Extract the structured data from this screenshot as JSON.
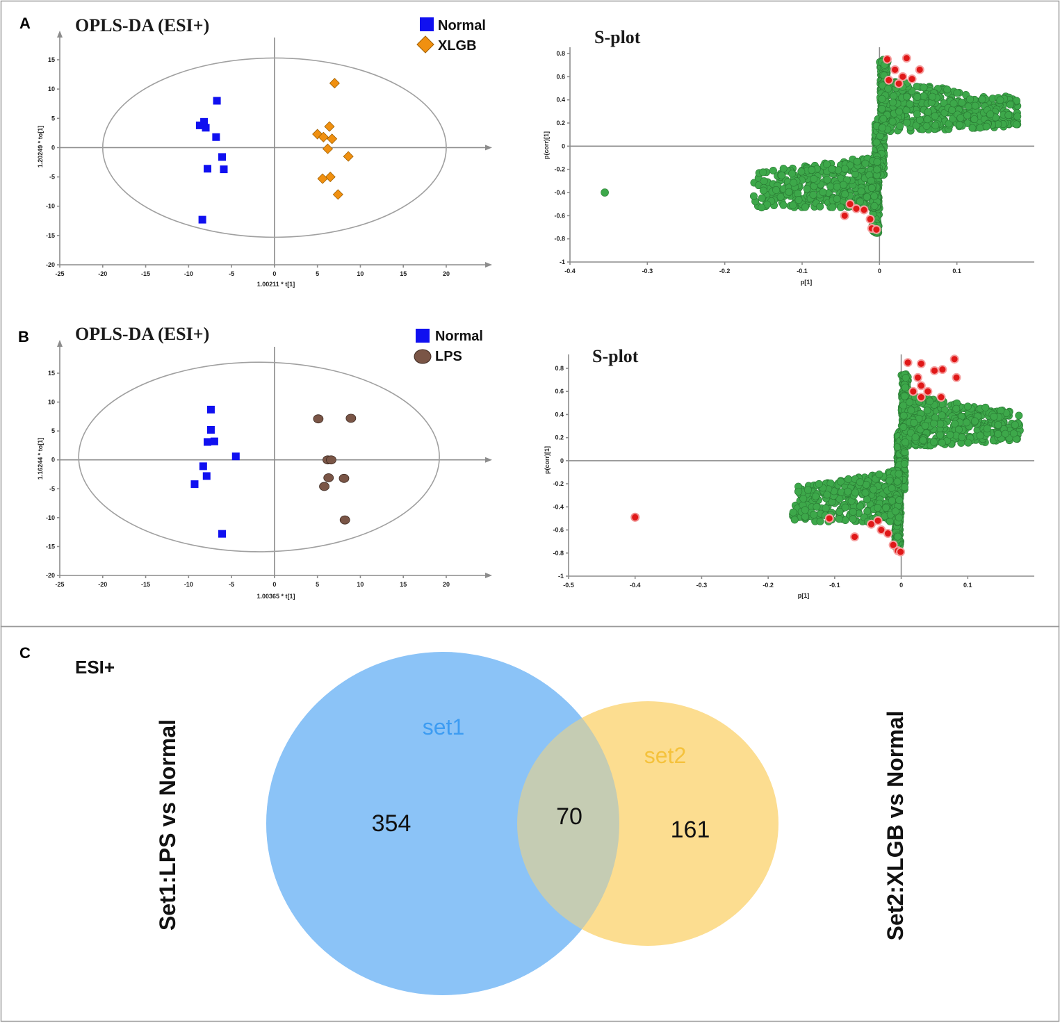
{
  "panel_letters": {
    "a": "A",
    "b": "B",
    "c": "C"
  },
  "colors": {
    "normal": "#1010f0",
    "xlgb": "#f09010",
    "lps": "#7a5546",
    "s_green": "#3da84a",
    "s_red": "#e01818",
    "set1": "#7fbdf7",
    "set2": "#fcd77c",
    "set1_label": "#3d9cf2",
    "set2_label": "#f5c23c"
  },
  "chart_data": [
    {
      "id": "A1",
      "type": "scatter",
      "title": "OPLS-DA (ESI+)",
      "xlabel": "1.00211 * t[1]",
      "ylabel": "1.20249 * to[1]",
      "xlim": [
        -25,
        25
      ],
      "ylim": [
        -20,
        18
      ],
      "xticks": [
        -25,
        -20,
        -15,
        -10,
        -5,
        0,
        5,
        10,
        15,
        20
      ],
      "yticks": [
        -20,
        -15,
        -10,
        -5,
        0,
        5,
        10,
        15
      ],
      "ellipse": {
        "cx": 0,
        "cy": 0,
        "rx": 20,
        "ry": 15.3
      },
      "series": [
        {
          "name": "Normal",
          "marker": "square",
          "color": "#1010f0",
          "points": [
            [
              -6.7,
              8
            ],
            [
              -8.7,
              3.8
            ],
            [
              -8.2,
              4.4
            ],
            [
              -8,
              3.4
            ],
            [
              -6.8,
              1.8
            ],
            [
              -6.1,
              -1.6
            ],
            [
              -5.9,
              -3.7
            ],
            [
              -7.8,
              -3.6
            ],
            [
              -8.4,
              -12.3
            ]
          ]
        },
        {
          "name": "XLGB",
          "marker": "diamond",
          "color": "#f09010",
          "points": [
            [
              7,
              11
            ],
            [
              5,
              2.3
            ],
            [
              5.7,
              1.8
            ],
            [
              6.4,
              3.6
            ],
            [
              6.7,
              1.5
            ],
            [
              6.2,
              -0.2
            ],
            [
              8.6,
              -1.5
            ],
            [
              6.5,
              -5
            ],
            [
              5.6,
              -5.3
            ],
            [
              7.4,
              -8
            ]
          ]
        }
      ]
    },
    {
      "id": "A2",
      "type": "scatter",
      "title": "S-plot",
      "xlabel": "p[1]",
      "ylabel": "p(corr)[1]",
      "xlim": [
        -0.4,
        0.2
      ],
      "ylim": [
        -1,
        0.85
      ],
      "xticks": [
        -0.4,
        -0.3,
        -0.2,
        -0.1,
        0,
        0.1
      ],
      "yticks": [
        -1,
        -0.8,
        -0.6,
        -0.4,
        -0.2,
        0,
        0.2,
        0.4,
        0.6,
        0.8
      ],
      "outlier": [
        -0.355,
        -0.4
      ],
      "red_points": [
        [
          0.01,
          0.75
        ],
        [
          0.035,
          0.76
        ],
        [
          0.052,
          0.66
        ],
        [
          0.02,
          0.66
        ],
        [
          0.03,
          0.6
        ],
        [
          0.012,
          0.57
        ],
        [
          0.025,
          0.54
        ],
        [
          0.042,
          0.58
        ],
        [
          -0.045,
          -0.6
        ],
        [
          -0.038,
          -0.5
        ],
        [
          -0.03,
          -0.54
        ],
        [
          -0.02,
          -0.55
        ],
        [
          -0.012,
          -0.63
        ],
        [
          -0.01,
          -0.71
        ],
        [
          -0.004,
          -0.72
        ]
      ]
    },
    {
      "id": "B1",
      "type": "scatter",
      "title": "OPLS-DA (ESI+)",
      "xlabel": "1.00365 * t[1]",
      "ylabel": "1.16244 * to[1]",
      "xlim": [
        -25,
        25
      ],
      "ylim": [
        -20,
        18
      ],
      "xticks": [
        -25,
        -20,
        -15,
        -10,
        -5,
        0,
        5,
        10,
        15,
        20
      ],
      "yticks": [
        -20,
        -15,
        -10,
        -5,
        0,
        5,
        10,
        15
      ],
      "ellipse": {
        "cx": -1.8,
        "cy": 0.5,
        "rx": 21,
        "ry": 16.4
      },
      "series": [
        {
          "name": "Normal",
          "marker": "square",
          "color": "#1010f0",
          "points": [
            [
              -7.4,
              8.7
            ],
            [
              -7.4,
              5.2
            ],
            [
              -7.8,
              3.1
            ],
            [
              -7,
              3.2
            ],
            [
              -4.5,
              0.6
            ],
            [
              -8.3,
              -1.1
            ],
            [
              -7.9,
              -2.8
            ],
            [
              -9.3,
              -4.2
            ],
            [
              -6.1,
              -12.8
            ]
          ]
        },
        {
          "name": "LPS",
          "marker": "circle",
          "color": "#7a5546",
          "points": [
            [
              5.1,
              7.1
            ],
            [
              8.9,
              7.2
            ],
            [
              6.2,
              0
            ],
            [
              6.6,
              0
            ],
            [
              6.3,
              -3.1
            ],
            [
              8.1,
              -3.2
            ],
            [
              5.8,
              -4.6
            ],
            [
              8.2,
              -10.4
            ]
          ]
        }
      ]
    },
    {
      "id": "B2",
      "type": "scatter",
      "title": "S-plot",
      "xlabel": "p[1]",
      "ylabel": "p(corr)[1]",
      "xlim": [
        -0.5,
        0.2
      ],
      "ylim": [
        -1,
        0.92
      ],
      "xticks": [
        -0.5,
        -0.4,
        -0.3,
        -0.2,
        -0.1,
        0,
        0.1
      ],
      "yticks": [
        -1,
        -0.8,
        -0.6,
        -0.4,
        -0.2,
        0,
        0.2,
        0.4,
        0.6,
        0.8
      ],
      "outlier": [
        -0.4,
        -0.49
      ],
      "red_points": [
        [
          0.01,
          0.85
        ],
        [
          0.03,
          0.84
        ],
        [
          0.05,
          0.78
        ],
        [
          0.062,
          0.79
        ],
        [
          0.08,
          0.88
        ],
        [
          0.083,
          0.72
        ],
        [
          0.025,
          0.72
        ],
        [
          0.03,
          0.65
        ],
        [
          0.04,
          0.6
        ],
        [
          0.06,
          0.55
        ],
        [
          0.018,
          0.6
        ],
        [
          0.03,
          0.55
        ],
        [
          -0.108,
          -0.5
        ],
        [
          -0.07,
          -0.66
        ],
        [
          -0.045,
          -0.55
        ],
        [
          -0.035,
          -0.52
        ],
        [
          -0.03,
          -0.6
        ],
        [
          -0.02,
          -0.63
        ],
        [
          -0.012,
          -0.73
        ],
        [
          -0.005,
          -0.78
        ],
        [
          -0.001,
          -0.79
        ]
      ]
    },
    {
      "id": "C",
      "type": "venn",
      "title": "ESI+",
      "set1": {
        "label": "set1",
        "only": "354",
        "side_label": "Set1:LPS vs Normal"
      },
      "set2": {
        "label": "set2",
        "only": "161",
        "side_label": "Set2:XLGB vs Normal"
      },
      "overlap": "70"
    }
  ]
}
